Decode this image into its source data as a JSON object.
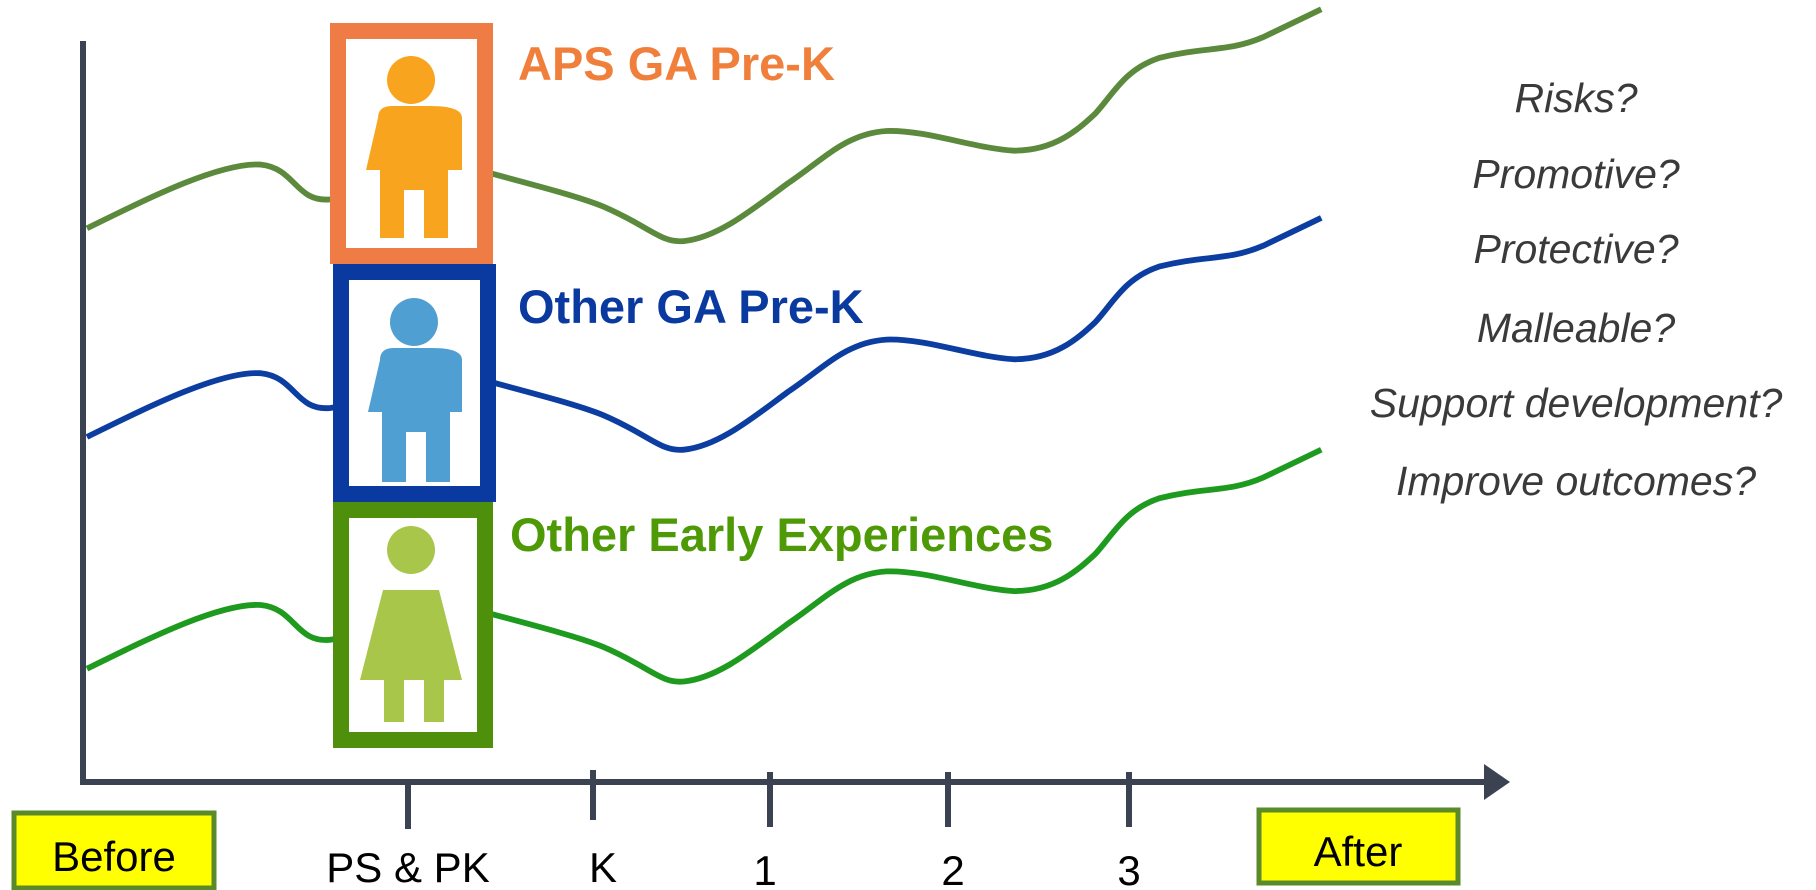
{
  "groups": [
    {
      "label": "APS GA Pre-K"
    },
    {
      "label": "Other GA Pre-K"
    },
    {
      "label": "Other Early Experiences"
    }
  ],
  "questions": [
    "Risks?",
    "Promotive?",
    "Protective?",
    "Malleable?",
    "Support development?",
    "Improve outcomes?"
  ],
  "timeline": {
    "start": "Before",
    "ticks": [
      "PS & PK",
      "K",
      "1",
      "2",
      "3"
    ],
    "end": "After"
  }
}
